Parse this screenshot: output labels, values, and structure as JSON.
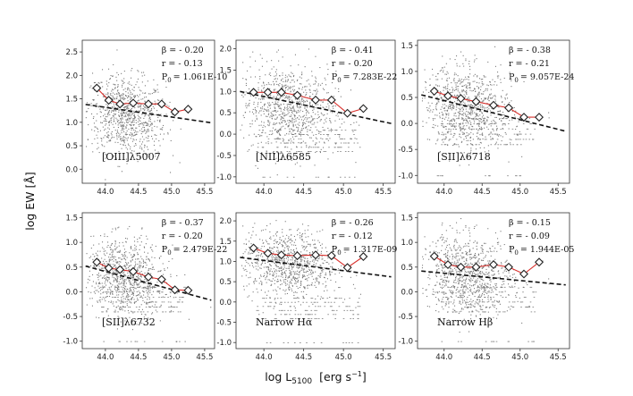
{
  "figure": {
    "ylabel": "log EW [Å]",
    "xlabel_main": "log L",
    "xlabel_sub": "5100",
    "xlabel_unit": "[erg s",
    "xlabel_unit_exp": "−1",
    "xlabel_unit_close": "]"
  },
  "chart_data": [
    {
      "type": "scatter",
      "panel": "[OIII]λ5007",
      "label": "[OIII]λ5007",
      "beta": "β = - 0.20",
      "r": "r = - 0.13",
      "p0": "P0 = 1.061E-10",
      "p0_value": "= 1.061E-10",
      "xlim": [
        43.65,
        45.65
      ],
      "ylim": [
        -0.3,
        2.75
      ],
      "xticks": [
        "44.0",
        "44.5",
        "45.0",
        "45.5"
      ],
      "yticks": [
        "0.0",
        "0.5",
        "1.0",
        "1.5",
        "2.0",
        "2.5"
      ],
      "binned_x": [
        43.87,
        44.05,
        44.22,
        44.42,
        44.65,
        44.85,
        45.05,
        45.25
      ],
      "binned_y": [
        1.73,
        1.47,
        1.39,
        1.41,
        1.39,
        1.39,
        1.22,
        1.28
      ],
      "fit": {
        "x0": 43.7,
        "y0": 1.38,
        "x1": 45.6,
        "y1": 0.99
      },
      "scatter_center": [
        44.3,
        1.15
      ],
      "scatter_spread": [
        0.3,
        0.42
      ]
    },
    {
      "type": "scatter",
      "panel": "[NII]λ6585",
      "label": "[NII]λ6585",
      "beta": "β = - 0.41",
      "r": "r = - 0.20",
      "p0": "P0 = 7.283E-22",
      "p0_value": "= 7.283E-22",
      "xlim": [
        43.65,
        45.65
      ],
      "ylim": [
        -1.15,
        2.2
      ],
      "xticks": [
        "44.0",
        "44.5",
        "45.0",
        "45.5"
      ],
      "yticks": [
        "-1.0",
        "-0.5",
        "0.0",
        "0.5",
        "1.0",
        "1.5",
        "2.0"
      ],
      "binned_x": [
        43.87,
        44.05,
        44.22,
        44.42,
        44.65,
        44.85,
        45.05,
        45.25
      ],
      "binned_y": [
        0.98,
        0.98,
        0.98,
        0.91,
        0.8,
        0.8,
        0.49,
        0.6
      ],
      "fit": {
        "x0": 43.7,
        "y0": 1.0,
        "x1": 45.6,
        "y1": 0.25
      },
      "scatter_center": [
        44.3,
        0.6
      ],
      "scatter_spread": [
        0.3,
        0.5
      ]
    },
    {
      "type": "scatter",
      "panel": "[SII]λ6718",
      "label": "[SII]λ6718",
      "beta": "β = - 0.38",
      "r": "r = - 0.21",
      "p0": "P0 = 9.057E-24",
      "p0_value": "= 9.057E-24",
      "xlim": [
        43.65,
        45.65
      ],
      "ylim": [
        -1.15,
        1.6
      ],
      "xticks": [
        "44.0",
        "44.5",
        "45.0",
        "45.5"
      ],
      "yticks": [
        "-1.0",
        "-0.5",
        "0.0",
        "0.5",
        "1.0",
        "1.5"
      ],
      "binned_x": [
        43.87,
        44.05,
        44.22,
        44.42,
        44.65,
        44.85,
        45.05,
        45.25
      ],
      "binned_y": [
        0.62,
        0.53,
        0.48,
        0.42,
        0.35,
        0.3,
        0.12,
        0.12
      ],
      "fit": {
        "x0": 43.7,
        "y0": 0.55,
        "x1": 45.6,
        "y1": -0.15
      },
      "scatter_center": [
        44.3,
        0.3
      ],
      "scatter_spread": [
        0.3,
        0.38
      ]
    },
    {
      "type": "scatter",
      "panel": "[SII]λ6732",
      "label": "[SII]λ6732",
      "beta": "β = - 0.37",
      "r": "r = - 0.20",
      "p0": "P0 = 2.479E-22",
      "p0_value": "= 2.479E-22",
      "xlim": [
        43.65,
        45.65
      ],
      "ylim": [
        -1.15,
        1.6
      ],
      "xticks": [
        "44.0",
        "44.5",
        "45.0",
        "45.5"
      ],
      "yticks": [
        "-1.0",
        "-0.5",
        "0.0",
        "0.5",
        "1.0",
        "1.5"
      ],
      "binned_x": [
        43.87,
        44.05,
        44.22,
        44.42,
        44.65,
        44.85,
        45.05,
        45.25
      ],
      "binned_y": [
        0.6,
        0.48,
        0.45,
        0.41,
        0.3,
        0.25,
        0.04,
        0.03
      ],
      "fit": {
        "x0": 43.7,
        "y0": 0.52,
        "x1": 45.6,
        "y1": -0.17
      },
      "scatter_center": [
        44.3,
        0.3
      ],
      "scatter_spread": [
        0.3,
        0.38
      ]
    },
    {
      "type": "scatter",
      "panel": "Narrow Hα",
      "label": "Narrow Hα",
      "beta": "β = - 0.26",
      "r": "r = - 0.12",
      "p0": "P0 = 1.317E-09",
      "p0_value": "= 1.317E-09",
      "xlim": [
        43.65,
        45.65
      ],
      "ylim": [
        -1.15,
        2.2
      ],
      "xticks": [
        "44.0",
        "44.5",
        "45.0",
        "45.5"
      ],
      "yticks": [
        "-1.0",
        "-0.5",
        "0.0",
        "0.5",
        "1.0",
        "1.5",
        "2.0"
      ],
      "binned_x": [
        43.87,
        44.05,
        44.22,
        44.42,
        44.65,
        44.85,
        45.05,
        45.25
      ],
      "binned_y": [
        1.33,
        1.2,
        1.16,
        1.14,
        1.16,
        1.14,
        0.85,
        1.12
      ],
      "fit": {
        "x0": 43.7,
        "y0": 1.1,
        "x1": 45.6,
        "y1": 0.62
      },
      "scatter_center": [
        44.3,
        0.95
      ],
      "scatter_spread": [
        0.3,
        0.42
      ]
    },
    {
      "type": "scatter",
      "panel": "Narrow Hβ",
      "label": "Narrow Hβ",
      "beta": "β = - 0.15",
      "r": "r = - 0.09",
      "p0": "P0 = 1.944E-05",
      "p0_value": "= 1.944E-05",
      "xlim": [
        43.65,
        45.65
      ],
      "ylim": [
        -1.15,
        1.6
      ],
      "xticks": [
        "44.0",
        "44.5",
        "45.0",
        "45.5"
      ],
      "yticks": [
        "-1.0",
        "-0.5",
        "0.0",
        "0.5",
        "1.0",
        "1.5"
      ],
      "binned_x": [
        43.87,
        44.05,
        44.22,
        44.42,
        44.65,
        44.85,
        45.05,
        45.25
      ],
      "binned_y": [
        0.72,
        0.55,
        0.5,
        0.5,
        0.55,
        0.5,
        0.36,
        0.6
      ],
      "fit": {
        "x0": 43.7,
        "y0": 0.42,
        "x1": 45.6,
        "y1": 0.14
      },
      "scatter_center": [
        44.3,
        0.35
      ],
      "scatter_spread": [
        0.3,
        0.4
      ]
    }
  ],
  "colors": {
    "scatter": "#7a7a7a",
    "binned_line": "#d9302c",
    "fit_line": "#111111",
    "axes": "#333333"
  }
}
